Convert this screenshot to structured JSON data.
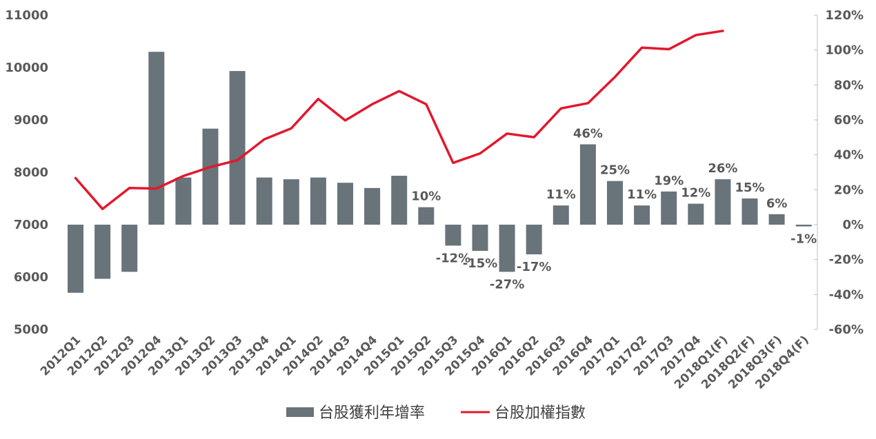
{
  "chart_data": {
    "type": "bar",
    "categories": [
      "2012Q1",
      "2012Q2",
      "2012Q3",
      "2012Q4",
      "2013Q1",
      "2013Q2",
      "2013Q3",
      "2013Q4",
      "2014Q1",
      "2014Q2",
      "2014Q3",
      "2014Q4",
      "2015Q1",
      "2015Q2",
      "2015Q3",
      "2015Q4",
      "2016Q1",
      "2016Q2",
      "2016Q3",
      "2016Q4",
      "2017Q1",
      "2017Q2",
      "2017Q3",
      "2017Q4",
      "2018Q1(F)",
      "2018Q2(F)",
      "2018Q3(F)",
      "2018Q4(F)"
    ],
    "series": [
      {
        "name": "台股獲利年增率",
        "type": "bar",
        "axis": "right",
        "color": "#68737a",
        "values": [
          -39,
          -31,
          -27,
          99,
          27,
          55,
          88,
          27,
          26,
          27,
          24,
          21,
          28,
          10,
          -12,
          -15,
          -27,
          -17,
          11,
          46,
          25,
          11,
          19,
          12,
          26,
          15,
          6,
          -1
        ],
        "labels": [
          "",
          "",
          "",
          "",
          "",
          "",
          "",
          "",
          "",
          "",
          "",
          "",
          "",
          "10%",
          "-12%",
          "-15%",
          "-27%",
          "-17%",
          "11%",
          "46%",
          "25%",
          "11%",
          "19%",
          "12%",
          "26%",
          "15%",
          "6%",
          "-1%"
        ]
      },
      {
        "name": "台股加權指數",
        "type": "line",
        "axis": "left",
        "color": "#e3172d",
        "values": [
          7890,
          7300,
          7700,
          7690,
          7930,
          8100,
          8230,
          8630,
          8840,
          9400,
          8990,
          9300,
          9550,
          9300,
          8180,
          8360,
          8740,
          8670,
          9220,
          9320,
          9820,
          10380,
          10350,
          10620,
          10700,
          null,
          null,
          null
        ]
      }
    ],
    "y_left": {
      "min": 5000,
      "max": 11000,
      "ticks": [
        "11000",
        "10000",
        "9000",
        "8000",
        "7000",
        "6000",
        "5000"
      ]
    },
    "y_right": {
      "min": -60,
      "max": 120,
      "ticks": [
        "120%",
        "100%",
        "80%",
        "60%",
        "40%",
        "20%",
        "0%",
        "-20%",
        "-40%",
        "-60%"
      ]
    },
    "grid": false,
    "legend": {
      "placement": "bottom",
      "items": [
        {
          "label": "台股獲利年增率",
          "kind": "bar",
          "color": "#68737a"
        },
        {
          "label": "台股加權指數",
          "kind": "line",
          "color": "#e3172d"
        }
      ]
    }
  }
}
